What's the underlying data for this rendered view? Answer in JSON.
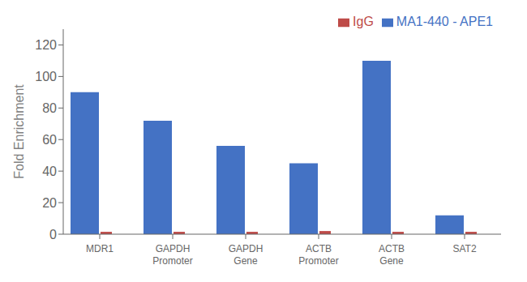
{
  "chart_data": {
    "type": "bar",
    "categories": [
      "MDR1",
      "GAPDH\nPromoter",
      "GAPDH\nGene",
      "ACTB\nPromoter",
      "ACTB\nGene",
      "SAT2"
    ],
    "series": [
      {
        "name": "MA1-440 - APE1",
        "color": "#4472C4",
        "values": [
          90,
          72,
          56,
          45,
          110,
          12
        ]
      },
      {
        "name": "IgG",
        "color": "#BE4B48",
        "values": [
          1.5,
          1.5,
          1.5,
          2.0,
          1.5,
          1.5
        ]
      }
    ],
    "ylabel": "Fold Enrichment",
    "ylim": [
      0,
      130
    ],
    "yticks": [
      0,
      20,
      40,
      60,
      80,
      100,
      120
    ],
    "grid": false,
    "legend": "upper right"
  }
}
